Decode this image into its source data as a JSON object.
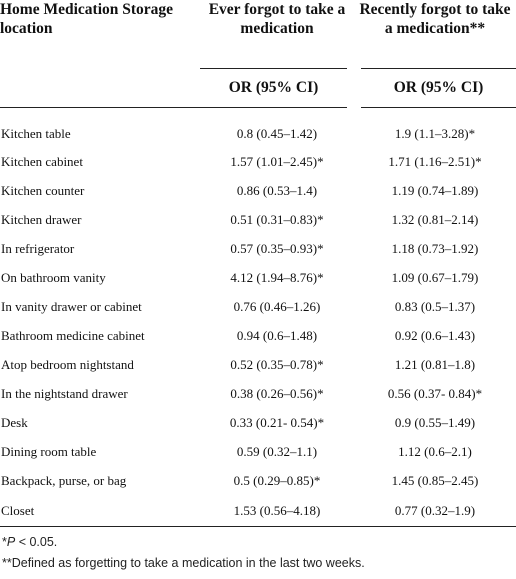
{
  "table": {
    "header": {
      "location": "Home Medication Storage location",
      "col1": "Ever forgot to take a medication",
      "col2": "Recently forgot to take a medication**",
      "col1_sub": "OR (95% CI)",
      "col2_sub": "OR (95% CI)"
    },
    "rows": [
      {
        "location": "Kitchen table",
        "ever": "0.8 (0.45–1.42)",
        "recent": "1.9 (1.1–3.28)*"
      },
      {
        "location": "Kitchen cabinet",
        "ever": "1.57 (1.01–2.45)*",
        "recent": "1.71 (1.16–2.51)*"
      },
      {
        "location": "Kitchen counter",
        "ever": "0.86 (0.53–1.4)",
        "recent": "1.19 (0.74–1.89)"
      },
      {
        "location": "Kitchen drawer",
        "ever": "0.51 (0.31–0.83)*",
        "recent": "1.32 (0.81–2.14)"
      },
      {
        "location": "In refrigerator",
        "ever": "0.57 (0.35–0.93)*",
        "recent": "1.18 (0.73–1.92)"
      },
      {
        "location": "On bathroom vanity",
        "ever": "4.12 (1.94–8.76)*",
        "recent": "1.09 (0.67–1.79)"
      },
      {
        "location": "In vanity drawer or cabinet",
        "ever": "0.76 (0.46–1.26)",
        "recent": "0.83 (0.5–1.37)"
      },
      {
        "location": "Bathroom medicine cabinet",
        "ever": "0.94 (0.6–1.48)",
        "recent": "0.92 (0.6–1.43)"
      },
      {
        "location": "Atop bedroom nightstand",
        "ever": "0.52 (0.35–0.78)*",
        "recent": "1.21 (0.81–1.8)"
      },
      {
        "location": "In the nightstand drawer",
        "ever": "0.38 (0.26–0.56)*",
        "recent": "0.56 (0.37- 0.84)*"
      },
      {
        "location": "Desk",
        "ever": "0.33 (0.21- 0.54)*",
        "recent": "0.9 (0.55–1.49)"
      },
      {
        "location": "Dining room table",
        "ever": "0.59 (0.32–1.1)",
        "recent": "1.12 (0.6–2.1)"
      },
      {
        "location": "Backpack, purse, or bag",
        "ever": "0.5 (0.29–0.85)*",
        "recent": "1.45 (0.85–2.45)"
      },
      {
        "location": "Closet",
        "ever": "1.53 (0.56–4.18)",
        "recent": "0.77 (0.32–1.9)"
      }
    ]
  },
  "footnotes": {
    "note1_prefix": "*",
    "note1_p": "P",
    "note1_rest": " < 0.05.",
    "note2": "**Defined as forgetting to take a medication in the last two weeks."
  }
}
